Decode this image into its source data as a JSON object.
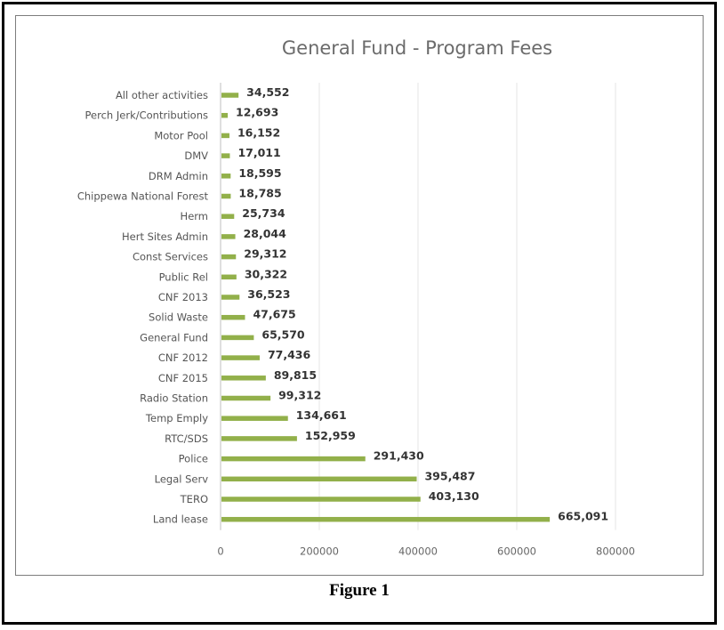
{
  "caption": "Figure 1",
  "chart_data": {
    "type": "bar",
    "orientation": "horizontal",
    "title": "General Fund - Program Fees",
    "categories": [
      "All other activities",
      "Perch Jerk/Contributions",
      "Motor Pool",
      "DMV",
      "DRM Admin",
      "Chippewa National Forest",
      "Herm",
      "Hert Sites Admin",
      "Const Services",
      "Public Rel",
      "CNF 2013",
      "Solid Waste",
      "General Fund",
      "CNF 2012",
      "CNF 2015",
      "Radio Station",
      "Temp Emply",
      "RTC/SDS",
      "Police",
      "Legal Serv",
      "TERO",
      "Land lease"
    ],
    "values": [
      34552,
      12693,
      16152,
      17011,
      18595,
      18785,
      25734,
      28044,
      29312,
      30322,
      36523,
      47675,
      65570,
      77436,
      89815,
      99312,
      134661,
      152959,
      291430,
      395487,
      403130,
      665091
    ],
    "data_labels": [
      "34,552",
      "12,693",
      "16,152",
      "17,011",
      "18,595",
      "18,785",
      "25,734",
      "28,044",
      "29,312",
      "30,322",
      "36,523",
      "47,675",
      "65,570",
      "77,436",
      "89,815",
      "99,312",
      "134,661",
      "152,959",
      "291,430",
      "395,487",
      "403,130",
      "665,091"
    ],
    "xticks": [
      0,
      200000,
      400000,
      600000,
      800000
    ],
    "xtick_labels": [
      "0",
      "200000",
      "400000",
      "600000",
      "800000"
    ],
    "xlim": [
      0,
      800000
    ],
    "grid": true,
    "legend": "none",
    "bar_color": "#92b04a"
  }
}
